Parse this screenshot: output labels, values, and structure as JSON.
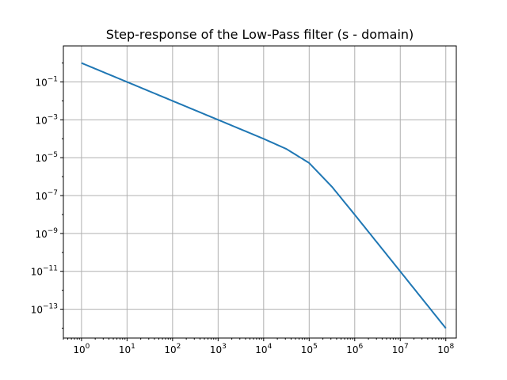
{
  "chart_data": {
    "type": "line",
    "title": "Step-response of the Low-Pass filter (s - domain)",
    "xlabel": "",
    "ylabel": "",
    "x_scale": "log",
    "y_scale": "log",
    "xlim": [
      0.4,
      170000000
    ],
    "ylim": [
      3e-15,
      8
    ],
    "grid": true,
    "x_ticks": [
      {
        "value": 1,
        "base": "10",
        "exp": "0"
      },
      {
        "value": 10,
        "base": "10",
        "exp": "1"
      },
      {
        "value": 100,
        "base": "10",
        "exp": "2"
      },
      {
        "value": 1000,
        "base": "10",
        "exp": "3"
      },
      {
        "value": 10000,
        "base": "10",
        "exp": "4"
      },
      {
        "value": 100000,
        "base": "10",
        "exp": "5"
      },
      {
        "value": 1000000,
        "base": "10",
        "exp": "6"
      },
      {
        "value": 10000000,
        "base": "10",
        "exp": "7"
      },
      {
        "value": 100000000,
        "base": "10",
        "exp": "8"
      }
    ],
    "y_ticks": [
      {
        "value": 0.1,
        "base": "10",
        "exp": "−1"
      },
      {
        "value": 0.001,
        "base": "10",
        "exp": "−3"
      },
      {
        "value": 1e-05,
        "base": "10",
        "exp": "−5"
      },
      {
        "value": 1e-07,
        "base": "10",
        "exp": "−7"
      },
      {
        "value": 1e-09,
        "base": "10",
        "exp": "−9"
      },
      {
        "value": 1e-11,
        "base": "10",
        "exp": "−11"
      },
      {
        "value": 1e-13,
        "base": "10",
        "exp": "−13"
      }
    ],
    "series": [
      {
        "color": "#1f77b4",
        "x": [
          1,
          3.16,
          10,
          31.6,
          100,
          316,
          1000,
          3162,
          10000,
          31623,
          100000,
          316228,
          1000000,
          3162278,
          10000000,
          31622777,
          100000000
        ],
        "y": [
          1.0,
          0.316,
          0.1,
          0.0316,
          0.01,
          0.00316,
          0.001,
          0.000316,
          9.95e-05,
          2.89e-05,
          5.25e-06,
          2.92e-07,
          9.76e-09,
          3.11e-10,
          9.85e-12,
          3.12e-13,
          9.86e-15
        ]
      }
    ]
  }
}
